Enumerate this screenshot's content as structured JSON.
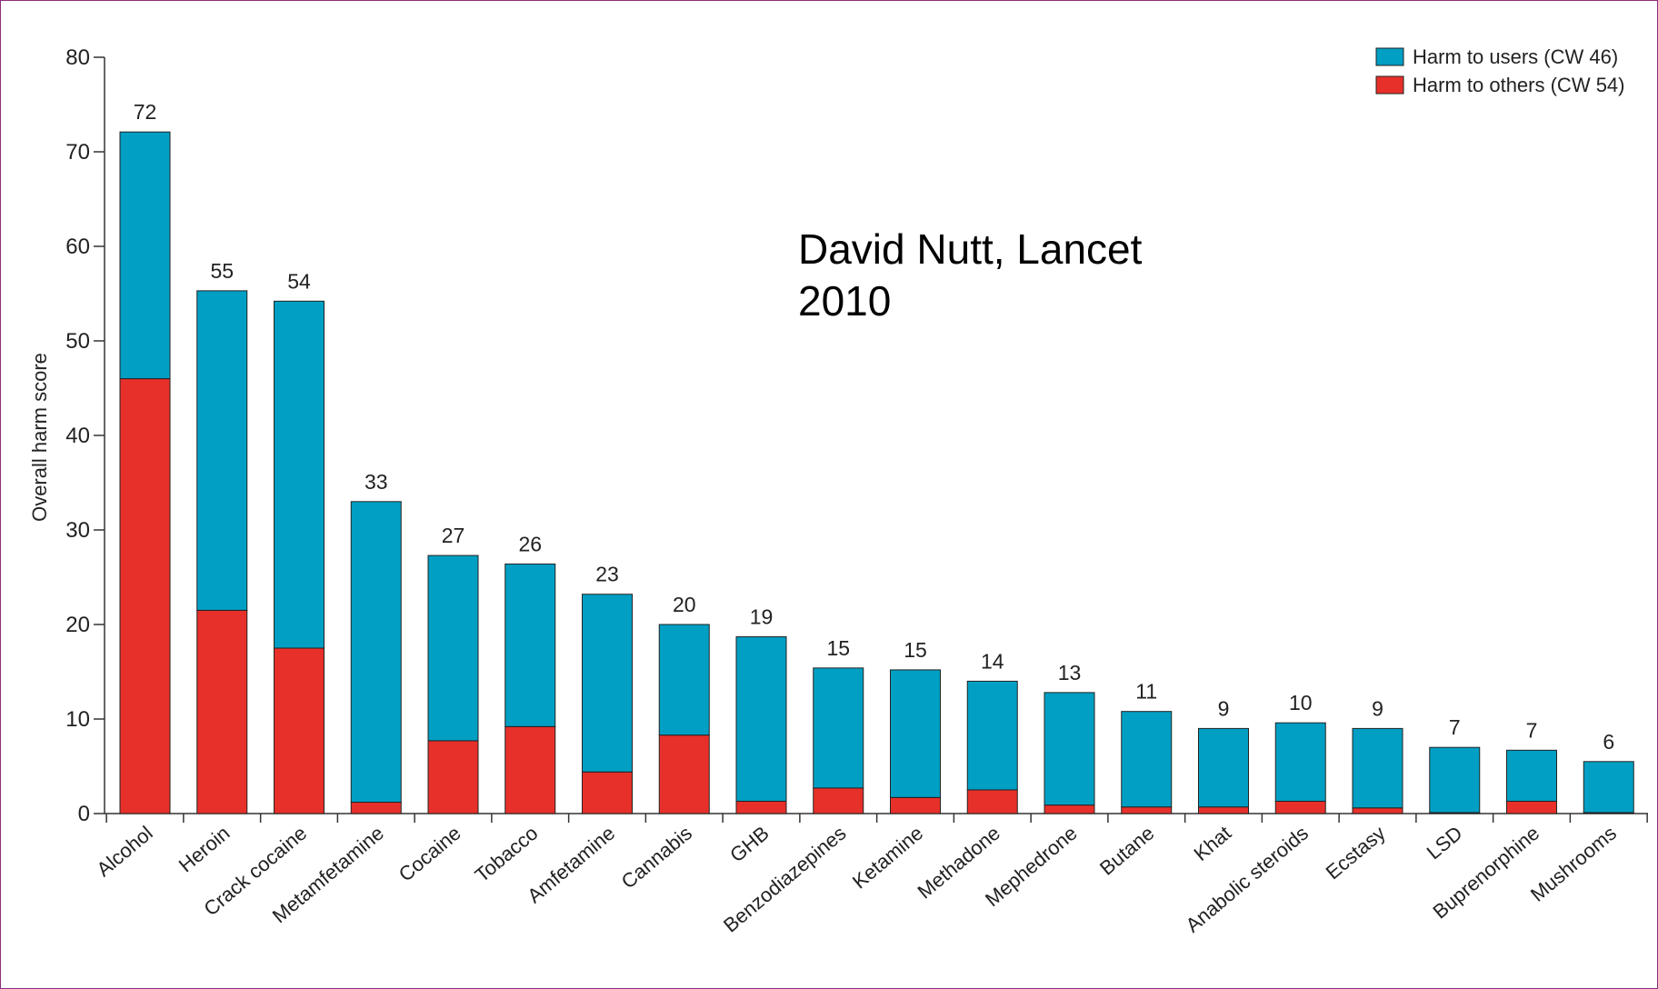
{
  "chart_data": {
    "type": "bar",
    "stacked": true,
    "ylabel": "Overall harm score",
    "ylim": [
      0,
      80
    ],
    "yticks": [
      "0",
      "10",
      "20",
      "30",
      "40",
      "50",
      "60",
      "70",
      "80"
    ],
    "grid": false,
    "legend_position": "top-right",
    "categories": [
      "Alcohol",
      "Heroin",
      "Crack cocaine",
      "Metamfetamine",
      "Cocaine",
      "Tobacco",
      "Amfetamine",
      "Cannabis",
      "GHB",
      "Benzodiazepines",
      "Ketamine",
      "Methadone",
      "Mephedrone",
      "Butane",
      "Khat",
      "Anabolic steroids",
      "Ecstasy",
      "LSD",
      "Buprenorphine",
      "Mushrooms"
    ],
    "series": [
      {
        "name": "Harm to others (CW 54)",
        "color": "#e8302a",
        "values": [
          46,
          21.5,
          17.5,
          1.2,
          7.7,
          9.2,
          4.4,
          8.3,
          1.3,
          2.7,
          1.7,
          2.5,
          0.9,
          0.7,
          0.7,
          1.3,
          0.6,
          0.1,
          1.3,
          0.1
        ]
      },
      {
        "name": "Harm to users (CW 46)",
        "color": "#009fc3",
        "values": [
          26.1,
          33.8,
          36.7,
          31.8,
          19.6,
          17.2,
          18.8,
          11.7,
          17.4,
          12.7,
          13.5,
          11.5,
          11.9,
          10.1,
          8.3,
          8.3,
          8.4,
          6.9,
          5.4,
          5.4
        ]
      }
    ],
    "totals": [
      "72",
      "55",
      "54",
      "33",
      "27",
      "26",
      "23",
      "20",
      "19",
      "15",
      "15",
      "14",
      "13",
      "11",
      "9",
      "10",
      "9",
      "7",
      "7",
      "6"
    ],
    "annotation": [
      "David Nutt, Lancet",
      "2010"
    ]
  }
}
